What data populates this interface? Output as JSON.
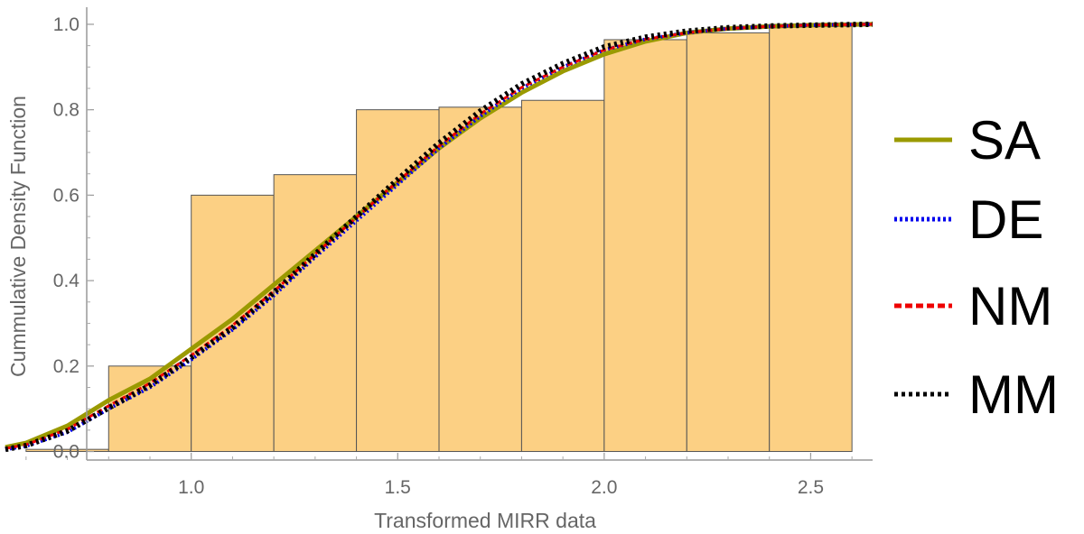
{
  "chart_data": {
    "type": "histogram-with-lines",
    "xlabel": "Transformed MIRR data",
    "ylabel": "Cummulative Density Function",
    "xlim": [
      0.55,
      2.65
    ],
    "ylim": [
      -0.02,
      1.04
    ],
    "x_ticks": [
      {
        "value": 1.0,
        "label": "1.0"
      },
      {
        "value": 1.5,
        "label": "1.5"
      },
      {
        "value": 2.0,
        "label": "2.0"
      },
      {
        "value": 2.5,
        "label": "2.5"
      }
    ],
    "y_ticks": [
      {
        "value": 0.0,
        "label": "0.0"
      },
      {
        "value": 0.2,
        "label": "0.2"
      },
      {
        "value": 0.4,
        "label": "0.4"
      },
      {
        "value": 0.6,
        "label": "0.6"
      },
      {
        "value": 0.8,
        "label": "0.8"
      },
      {
        "value": 1.0,
        "label": "1.0"
      }
    ],
    "bars": [
      {
        "x0": 0.6,
        "x1": 0.8,
        "value": 0.005
      },
      {
        "x0": 0.8,
        "x1": 1.0,
        "value": 0.2
      },
      {
        "x0": 1.0,
        "x1": 1.2,
        "value": 0.6
      },
      {
        "x0": 1.2,
        "x1": 1.4,
        "value": 0.648
      },
      {
        "x0": 1.4,
        "x1": 1.6,
        "value": 0.8
      },
      {
        "x0": 1.6,
        "x1": 1.8,
        "value": 0.806
      },
      {
        "x0": 1.8,
        "x1": 2.0,
        "value": 0.822
      },
      {
        "x0": 2.0,
        "x1": 2.2,
        "value": 0.964
      },
      {
        "x0": 2.2,
        "x1": 2.4,
        "value": 0.98
      },
      {
        "x0": 2.4,
        "x1": 2.6,
        "value": 1.0
      }
    ],
    "series": [
      {
        "name": "SA",
        "color": "#9a9a00",
        "style": "solid",
        "x": [
          0.55,
          0.6,
          0.7,
          0.8,
          0.9,
          1.0,
          1.1,
          1.2,
          1.3,
          1.4,
          1.5,
          1.6,
          1.7,
          1.8,
          1.9,
          2.0,
          2.1,
          2.2,
          2.3,
          2.4,
          2.5,
          2.65
        ],
        "y": [
          0.01,
          0.02,
          0.06,
          0.12,
          0.17,
          0.24,
          0.31,
          0.39,
          0.47,
          0.55,
          0.63,
          0.71,
          0.78,
          0.84,
          0.89,
          0.93,
          0.96,
          0.98,
          0.99,
          0.995,
          0.998,
          1.0
        ]
      },
      {
        "name": "DE",
        "color": "#0000ee",
        "style": "dotted",
        "x": [
          0.55,
          0.6,
          0.7,
          0.8,
          0.9,
          1.0,
          1.1,
          1.2,
          1.3,
          1.4,
          1.5,
          1.6,
          1.7,
          1.8,
          1.9,
          2.0,
          2.1,
          2.2,
          2.3,
          2.4,
          2.5,
          2.65
        ],
        "y": [
          0.005,
          0.013,
          0.045,
          0.1,
          0.15,
          0.215,
          0.285,
          0.365,
          0.455,
          0.54,
          0.625,
          0.71,
          0.785,
          0.85,
          0.9,
          0.94,
          0.965,
          0.98,
          0.99,
          0.995,
          0.998,
          1.0
        ]
      },
      {
        "name": "NM",
        "color": "#ee0000",
        "style": "dashed",
        "x": [
          0.55,
          0.6,
          0.7,
          0.8,
          0.9,
          1.0,
          1.1,
          1.2,
          1.3,
          1.4,
          1.5,
          1.6,
          1.7,
          1.8,
          1.9,
          2.0,
          2.1,
          2.2,
          2.3,
          2.4,
          2.5,
          2.65
        ],
        "y": [
          0.007,
          0.016,
          0.052,
          0.107,
          0.16,
          0.225,
          0.295,
          0.375,
          0.462,
          0.548,
          0.632,
          0.715,
          0.79,
          0.852,
          0.9,
          0.94,
          0.965,
          0.98,
          0.99,
          0.995,
          0.998,
          1.0
        ]
      },
      {
        "name": "MM",
        "color": "#000000",
        "style": "dotted-thick",
        "x": [
          0.55,
          0.6,
          0.7,
          0.8,
          0.9,
          1.0,
          1.1,
          1.2,
          1.3,
          1.4,
          1.5,
          1.6,
          1.7,
          1.8,
          1.9,
          2.0,
          2.1,
          2.2,
          2.3,
          2.4,
          2.5,
          2.65
        ],
        "y": [
          0.005,
          0.014,
          0.048,
          0.102,
          0.155,
          0.22,
          0.29,
          0.372,
          0.462,
          0.55,
          0.637,
          0.722,
          0.797,
          0.86,
          0.908,
          0.947,
          0.97,
          0.984,
          0.992,
          0.996,
          0.998,
          1.0
        ]
      }
    ],
    "legend_position": "right",
    "grid": false
  }
}
